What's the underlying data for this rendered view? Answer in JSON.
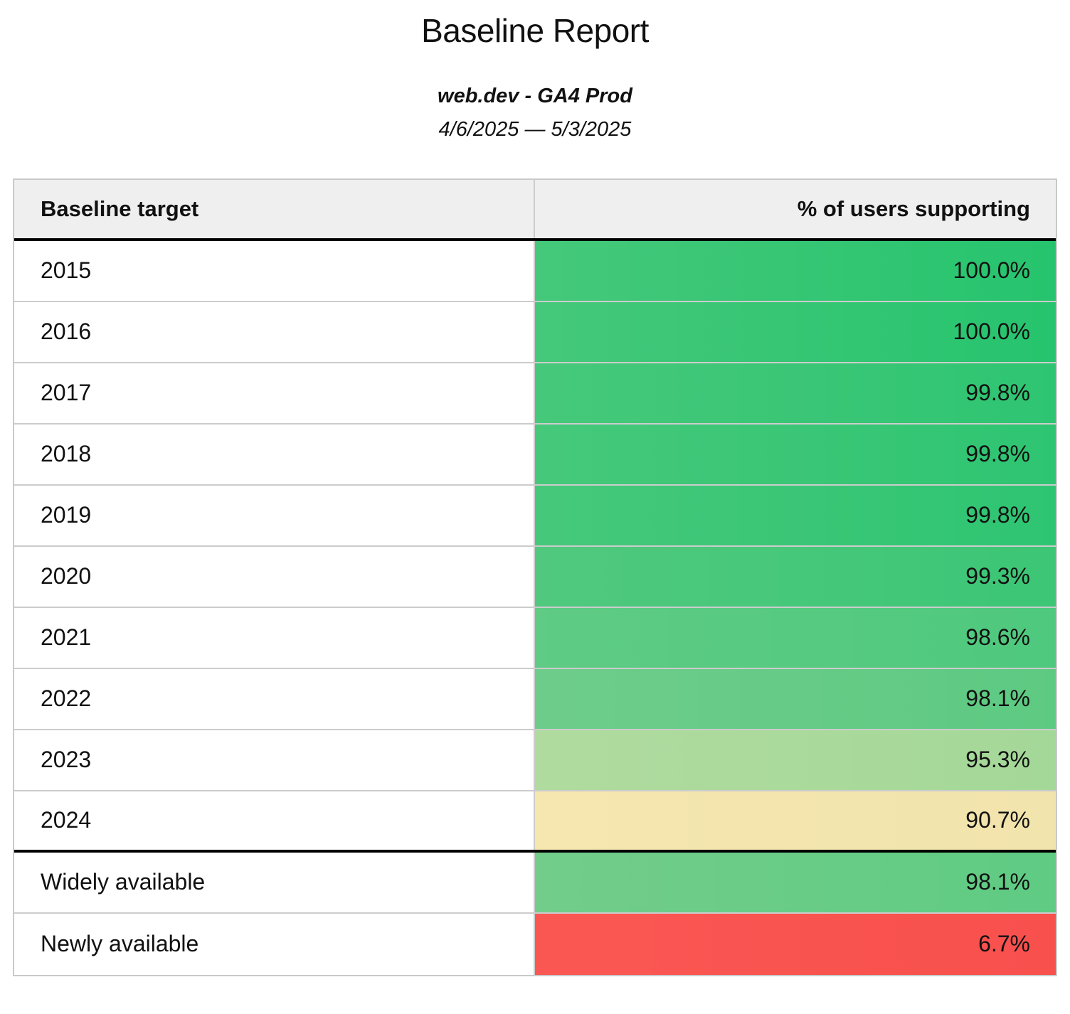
{
  "report": {
    "title": "Baseline Report",
    "source": "web.dev - GA4 Prod",
    "date_range": "4/6/2025 — 5/3/2025"
  },
  "table": {
    "headers": {
      "target": "Baseline target",
      "support": "% of users supporting"
    },
    "rows": [
      {
        "label": "2015",
        "value": "100.0%",
        "colors": [
          "#45c87a",
          "#26c46e"
        ]
      },
      {
        "label": "2016",
        "value": "100.0%",
        "colors": [
          "#45c87a",
          "#26c46e"
        ]
      },
      {
        "label": "2017",
        "value": "99.8%",
        "colors": [
          "#46c87a",
          "#2ec572"
        ]
      },
      {
        "label": "2018",
        "value": "99.8%",
        "colors": [
          "#46c87a",
          "#2ec572"
        ]
      },
      {
        "label": "2019",
        "value": "99.8%",
        "colors": [
          "#46c87a",
          "#2ec572"
        ]
      },
      {
        "label": "2020",
        "value": "99.3%",
        "colors": [
          "#50c97e",
          "#3cc676"
        ]
      },
      {
        "label": "2021",
        "value": "98.6%",
        "colors": [
          "#5fcb84",
          "#4ec97d"
        ]
      },
      {
        "label": "2022",
        "value": "98.1%",
        "colors": [
          "#6ecc8a",
          "#5dca82"
        ]
      },
      {
        "label": "2023",
        "value": "95.3%",
        "colors": [
          "#b0db9f",
          "#a4d898"
        ]
      },
      {
        "label": "2024",
        "value": "90.7%",
        "colors": [
          "#f6e6b0",
          "#f1e4ac"
        ]
      },
      {
        "label": "Widely available",
        "value": "98.1%",
        "colors": [
          "#72cd8a",
          "#5fcb83"
        ]
      },
      {
        "label": "Newly available",
        "value": "6.7%",
        "colors": [
          "#fa5753",
          "#f8504d"
        ]
      }
    ]
  }
}
